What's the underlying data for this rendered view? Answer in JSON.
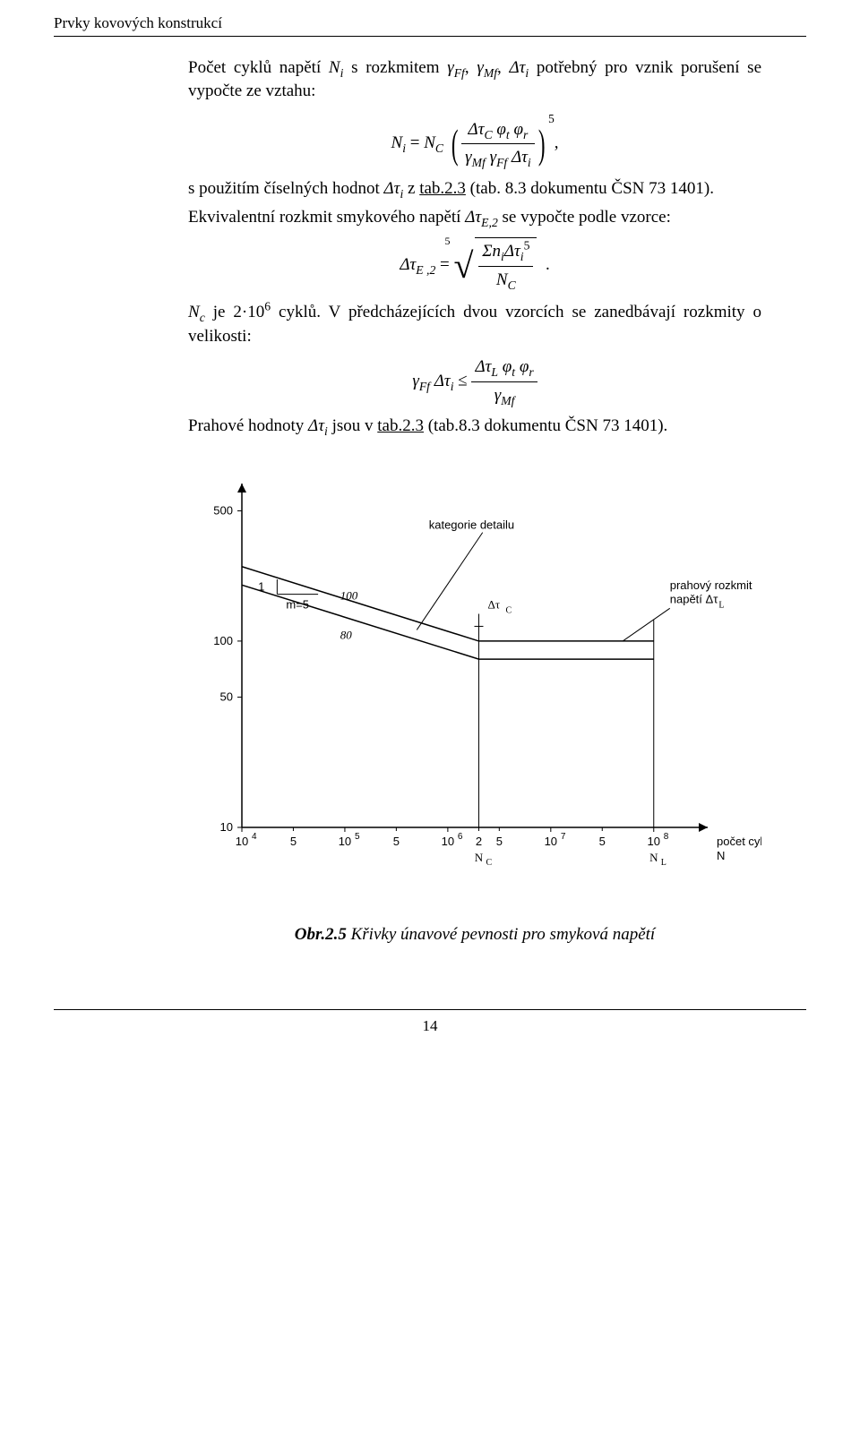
{
  "running_head": "Prvky kovových konstrukcí",
  "para1_a": "Počet cyklů napětí ",
  "para1_b": " s rozkmitem ",
  "para1_c": " potřebný pro vznik porušení se vypočte ze vztahu:",
  "sym_Ni": "N",
  "sym_i": "i",
  "sym_gamma": "γ",
  "sym_Ff": "Ff",
  "sym_Mf": "Mf",
  "sym_dtau": "Δτ",
  "sym_dtauC": "Δτ",
  "sym_C": "C",
  "sym_phi": "φ",
  "sym_t": "t",
  "sym_r": "r",
  "eq1_exp": "5",
  "eq1_comma": ",",
  "para2_a": "s použitím číselných hodnot ",
  "para2_b": " z ",
  "para2_link": "tab.2.3",
  "para2_c": " (tab. 8.3 dokumentu ČSN 73 1401).",
  "para3_a": "Ekvivalentní rozkmit smykového napětí ",
  "para3_sym": "Δτ",
  "para3_sub": "E,2",
  "para3_b": " se vypočte podle vzorce:",
  "eq2_lhs_sym": "Δτ",
  "eq2_lhs_sub": "E ,2",
  "eq2_root_deg": "5",
  "eq2_num_a": "Σn",
  "eq2_num_exp": "5",
  "eq2_den": "N",
  "eq2_period": ".",
  "para4_a_pre": "N",
  "para4_a_sub": "c",
  "para4_a_mid": " je 2·10",
  "para4_a_exp": "6",
  "para4_a_post": " cyklů. V předcházejících dvou vzorcích se zanedbávají rozkmity o velikosti:",
  "eq3_num_sym": "Δτ",
  "eq3_num_sub": "L",
  "para5_a": "Prahové hodnoty ",
  "para5_b": " jsou v ",
  "para5_link": "tab.2.3",
  "para5_c": " (tab.8.3 dokumentu ČSN 73 1401).",
  "caption_bold": "Obr.2.5",
  "caption_ital": " Křivky únavové pevnosti pro smyková napětí",
  "page_number": "14",
  "chart": {
    "type": "log-log-line",
    "background_color": "#ffffff",
    "axis_color": "#000000",
    "line_color": "#000000",
    "font_family_labels": "Arial",
    "label_fontsize": 13,
    "y_ticks": [
      500,
      100,
      50,
      10
    ],
    "y_tick_labels": [
      "500",
      "100",
      "50",
      "10"
    ],
    "x_ticks_major": [
      10000.0,
      100000.0,
      1000000.0,
      10000000.0,
      100000000.0
    ],
    "x_tick_labels": [
      "10",
      "10",
      "10",
      "10",
      "10"
    ],
    "x_tick_exps": [
      "4",
      "5",
      "6",
      "7",
      "8"
    ],
    "x_mid_labels": [
      "5",
      "5",
      "2",
      "5",
      "5"
    ],
    "x_mid_positions": [
      31600.0,
      316000.0,
      2000000.0,
      3160000.0,
      31600000.0
    ],
    "x_axis_title": "počet cyklů",
    "x_axis_title2": "N",
    "lines": [
      {
        "label": "100",
        "points": [
          [
            10000.0,
            251
          ],
          [
            2000000.0,
            100
          ],
          [
            100000000.0,
            100
          ]
        ]
      },
      {
        "label": "80",
        "points": [
          [
            10000.0,
            200
          ],
          [
            2000000.0,
            80
          ],
          [
            100000000.0,
            80
          ]
        ]
      }
    ],
    "slope_triangle": {
      "at_x": 35000.0,
      "label_dx": "1",
      "label_dy": "m=5"
    },
    "annotations": {
      "kategorie_detailu": "kategorie detailu",
      "dtau_C": "Δτ",
      "dtau_C_sub": "C",
      "prahovy": "prahový rozkmit",
      "napeti": "napětí  Δτ",
      "napeti_sub": "L",
      "N_C": "N",
      "N_C_sub": "C",
      "N_L": "N",
      "N_L_sub": "L"
    }
  }
}
